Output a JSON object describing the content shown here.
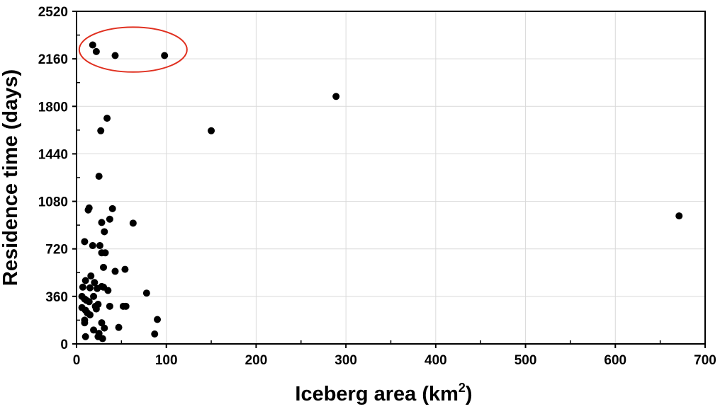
{
  "chart_data": {
    "type": "scatter",
    "title": "",
    "xlabel": "Iceberg area (km",
    "xlabel_sup": "2",
    "xlabel_suffix": ")",
    "ylabel": "Residence time (days)",
    "xlim": [
      0,
      700
    ],
    "ylim": [
      0,
      2520
    ],
    "xticks": [
      0,
      100,
      200,
      300,
      400,
      500,
      600,
      700
    ],
    "yticks": [
      0,
      360,
      720,
      1080,
      1440,
      1800,
      2160,
      2520
    ],
    "grid": true,
    "marker_color": "#000000",
    "grid_color": "#d9d9d9",
    "highlight": {
      "shape": "ellipse",
      "color": "#e03020",
      "x_range": [
        3,
        123
      ],
      "y_range": [
        2060,
        2400
      ]
    },
    "series": [
      {
        "points": [
          [
            18,
            2265
          ],
          [
            22,
            2215
          ],
          [
            43,
            2185
          ],
          [
            98,
            2185
          ],
          [
            289,
            1875
          ],
          [
            150,
            1615
          ],
          [
            671,
            970
          ],
          [
            34,
            1710
          ],
          [
            27,
            1615
          ],
          [
            25,
            1270
          ],
          [
            13,
            1015
          ],
          [
            14,
            1030
          ],
          [
            40,
            1025
          ],
          [
            37,
            945
          ],
          [
            28,
            920
          ],
          [
            63,
            915
          ],
          [
            31,
            850
          ],
          [
            9,
            775
          ],
          [
            18,
            745
          ],
          [
            26,
            745
          ],
          [
            28,
            690
          ],
          [
            32,
            690
          ],
          [
            30,
            580
          ],
          [
            54,
            565
          ],
          [
            43,
            550
          ],
          [
            16,
            515
          ],
          [
            10,
            480
          ],
          [
            20,
            465
          ],
          [
            7,
            430
          ],
          [
            15,
            425
          ],
          [
            23,
            420
          ],
          [
            28,
            435
          ],
          [
            30,
            430
          ],
          [
            35,
            405
          ],
          [
            78,
            385
          ],
          [
            6,
            360
          ],
          [
            9,
            340
          ],
          [
            11,
            330
          ],
          [
            14,
            320
          ],
          [
            19,
            360
          ],
          [
            24,
            300
          ],
          [
            21,
            285
          ],
          [
            22,
            265
          ],
          [
            37,
            285
          ],
          [
            52,
            285
          ],
          [
            55,
            285
          ],
          [
            6,
            275
          ],
          [
            10,
            255
          ],
          [
            12,
            235
          ],
          [
            15,
            220
          ],
          [
            9,
            180
          ],
          [
            9,
            160
          ],
          [
            28,
            160
          ],
          [
            90,
            185
          ],
          [
            19,
            105
          ],
          [
            31,
            120
          ],
          [
            47,
            125
          ],
          [
            25,
            80
          ],
          [
            10,
            55
          ],
          [
            24,
            55
          ],
          [
            29,
            40
          ],
          [
            87,
            75
          ]
        ]
      }
    ]
  }
}
